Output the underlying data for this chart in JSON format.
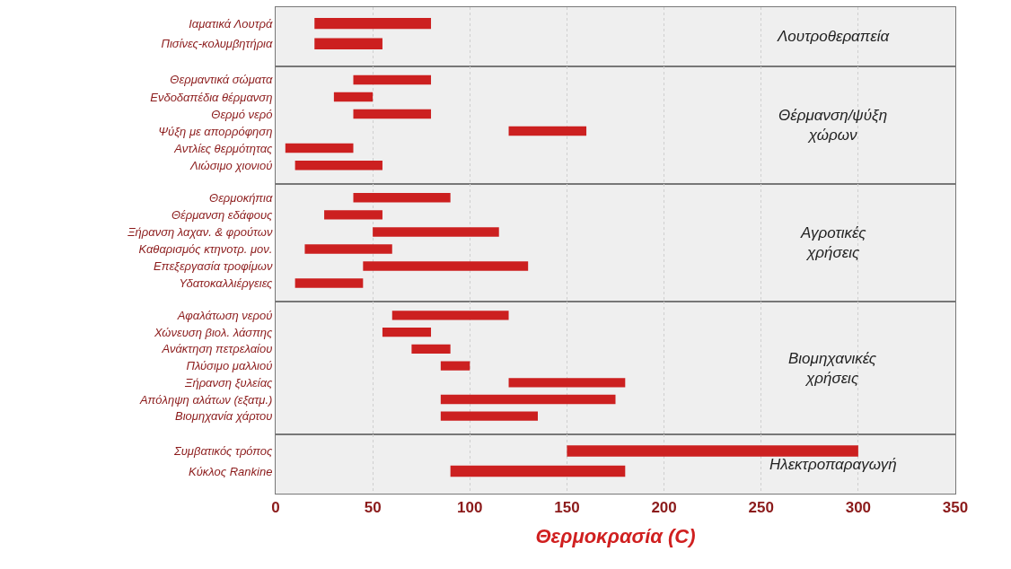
{
  "chart_data": [
    {
      "type": "bar",
      "orientation": "horizontal",
      "categories": [
        "Ιαματικά Λουτρά",
        "Πισίνες-κολυμβητήρια"
      ],
      "base": [
        20,
        20
      ],
      "values": [
        60,
        35
      ],
      "color": "#cc2020",
      "xlim": [
        0,
        350
      ],
      "xticks": [
        0,
        50,
        100,
        150,
        200,
        250,
        300,
        350
      ],
      "grid": "x",
      "tick_labels": "y",
      "annotations": [
        "Λουτροθεραπεία"
      ]
    },
    {
      "type": "bar",
      "orientation": "horizontal",
      "categories": [
        "Θερμαντικά σώματα",
        "Ενδοδαπέδια θέρμανση",
        "Θερμό νερό",
        "Ψύξη με απορρόφηση",
        "Αντλίες θερμότητας",
        "Λιώσιμο χιονιού"
      ],
      "base": [
        40,
        30,
        40,
        120,
        5,
        10
      ],
      "values": [
        40,
        20,
        40,
        40,
        35,
        45
      ],
      "color": "#cc2020",
      "xlim": [
        0,
        350
      ],
      "xticks": [
        0,
        50,
        100,
        150,
        200,
        250,
        300,
        350
      ],
      "grid": "x",
      "tick_labels": "y",
      "annotations": [
        "Θέρμανση/ψύξη\nχώρων"
      ]
    },
    {
      "type": "bar",
      "orientation": "horizontal",
      "categories": [
        "Θερμοκήπια",
        "Θέρμανση εδάφους",
        "Ξήρανση λαχαν. & φρούτων",
        "Καθαρισμός κτηνοτρ. μον.",
        "Επεξεργασία τροφίμων",
        "Υδατοκαλλιέργειες"
      ],
      "base": [
        40,
        25,
        50,
        15,
        45,
        10
      ],
      "values": [
        50,
        30,
        65,
        45,
        85,
        35
      ],
      "color": "#cc2020",
      "xlim": [
        0,
        350
      ],
      "xticks": [
        0,
        50,
        100,
        150,
        200,
        250,
        300,
        350
      ],
      "grid": "x",
      "tick_labels": "y",
      "annotations": [
        "Αγροτικές\nχρήσεις"
      ]
    },
    {
      "type": "bar",
      "orientation": "horizontal",
      "categories": [
        "Αφαλάτωση νερού",
        "Χώνευση βιολ. λάσπης",
        "Ανάκτηση πετρελαίου",
        "Πλύσιμο μαλλιού",
        "Ξήρανση ξυλείας",
        "Απόληψη αλάτων (εξατμ.)",
        "Βιομηχανία χάρτου"
      ],
      "base": [
        60,
        55,
        70,
        85,
        120,
        85,
        85
      ],
      "values": [
        60,
        25,
        20,
        15,
        60,
        90,
        50
      ],
      "color": "#cc2020",
      "xlim": [
        0,
        350
      ],
      "xticks": [
        0,
        50,
        100,
        150,
        200,
        250,
        300,
        350
      ],
      "grid": "x",
      "tick_labels": "y",
      "annotations": [
        "Βιομηχανικές\nχρήσεις"
      ]
    },
    {
      "type": "bar",
      "orientation": "horizontal",
      "categories": [
        "Συμβατικός τρόπος",
        "Κύκλος Rankine"
      ],
      "base": [
        150,
        90
      ],
      "values": [
        150,
        90
      ],
      "color": "#cc2020",
      "xlim": [
        0,
        350
      ],
      "xticks": [
        0,
        50,
        100,
        150,
        200,
        250,
        300,
        350
      ],
      "grid": "x",
      "annotations": [
        "Ηλεκτροπαραγωγή"
      ],
      "xlabel": "Θερμοκρασία (C)"
    }
  ]
}
